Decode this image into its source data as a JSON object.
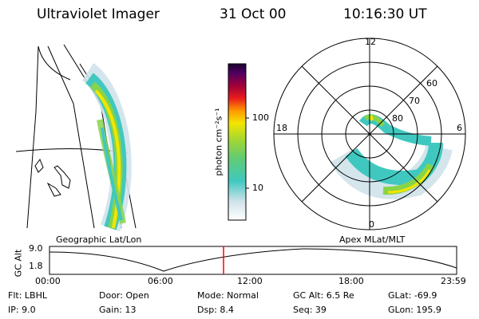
{
  "header": {
    "title": "Ultraviolet Imager",
    "date": "31 Oct 00",
    "time": "10:16:30 UT"
  },
  "colorbar": {
    "unit_label": "photon cm⁻²s⁻¹",
    "ticks": [
      "100",
      "10"
    ]
  },
  "polar": {
    "mlt_labels": [
      "12",
      "18",
      "6",
      "0"
    ],
    "lat_labels": [
      "60",
      "70",
      "80"
    ]
  },
  "panel_labels": {
    "left": "Geographic Lat/Lon",
    "right": "Apex MLat/MLT"
  },
  "altitude_plot": {
    "ylabel": "GC Alt",
    "y_ticks": [
      "9.0",
      "1.8"
    ],
    "x_ticks": [
      "00:00",
      "06:00",
      "12:00",
      "18:00",
      "23:59"
    ],
    "current_marker": "10:16:30"
  },
  "info": {
    "flt": "Flt: LBHL",
    "ip": "IP:  9.0",
    "door": "Door: Open",
    "gain": "Gain: 13",
    "mode": "Mode: Normal",
    "dsp": "Dsp:     8.4",
    "gcalt": "GC Alt: 6.5 Re",
    "seq": "Seq: 39",
    "glat": "GLat:  -69.9",
    "glon": "GLon:  195.9"
  },
  "colors": {
    "marker": "#ff0000",
    "aurora_bright": "#f2e600",
    "aurora_mid": "#88d34a",
    "aurora_low": "#40c8c0",
    "aurora_faint": "#cfe2ea"
  }
}
